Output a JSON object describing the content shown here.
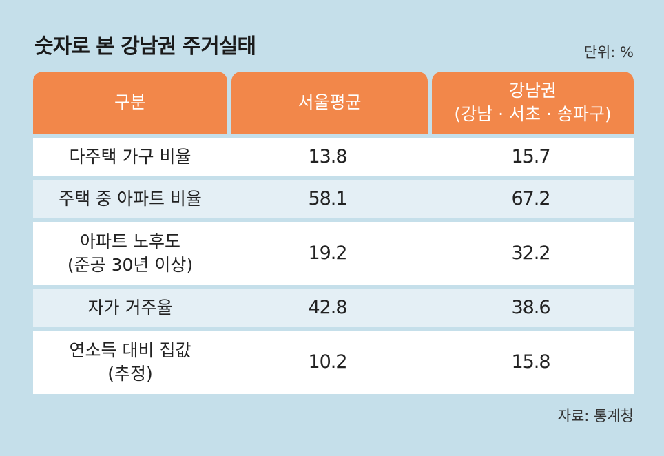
{
  "title": "숫자로 본 강남권 주거실태",
  "unit": "단위: %",
  "source": "자료: 통계청",
  "chart_data": {
    "type": "table",
    "columns": [
      {
        "label": "구분",
        "sublabel": ""
      },
      {
        "label": "서울평균",
        "sublabel": ""
      },
      {
        "label": "강남권",
        "sublabel": "(강남 · 서초 · 송파구)"
      }
    ],
    "rows": [
      {
        "label": "다주택 가구 비율",
        "sublabel": "",
        "seoul": "13.8",
        "gangnam": "15.7"
      },
      {
        "label": "주택 중 아파트 비율",
        "sublabel": "",
        "seoul": "58.1",
        "gangnam": "67.2"
      },
      {
        "label": "아파트 노후도",
        "sublabel": "(준공 30년 이상)",
        "seoul": "19.2",
        "gangnam": "32.2"
      },
      {
        "label": "자가 거주율",
        "sublabel": "",
        "seoul": "42.8",
        "gangnam": "38.6"
      },
      {
        "label": "연소득 대비 집값",
        "sublabel": "(추정)",
        "seoul": "10.2",
        "gangnam": "15.8"
      }
    ]
  }
}
